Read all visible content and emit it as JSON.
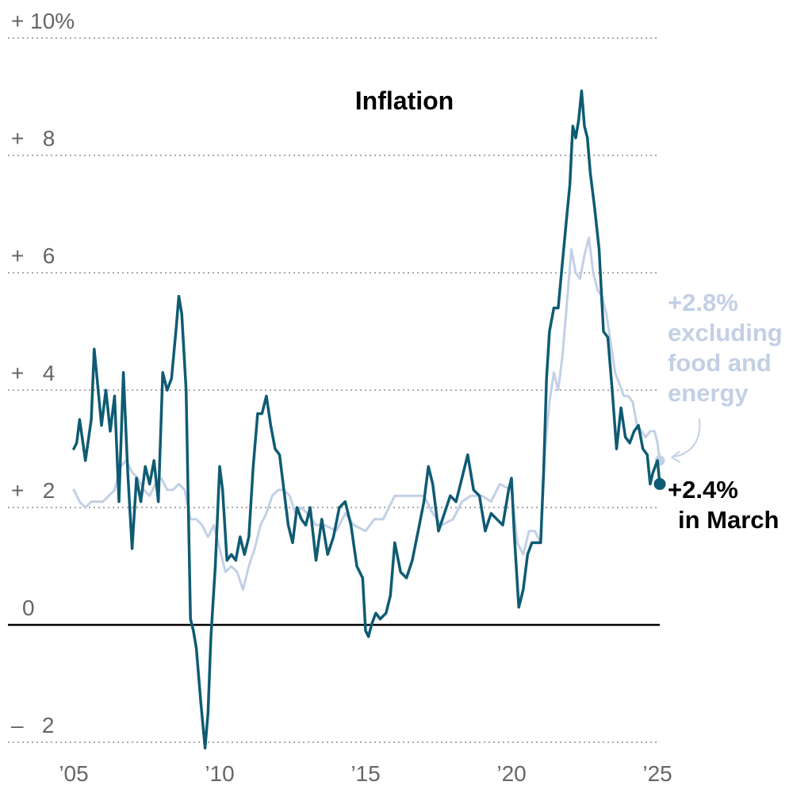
{
  "chart_data": {
    "type": "line",
    "title": "Inflation",
    "xlabel": "",
    "ylabel": "",
    "xlim": [
      2005.0,
      2025.25
    ],
    "ylim": [
      -2,
      10
    ],
    "grid": true,
    "y_ticks": [
      {
        "value": 10,
        "label": "+ 10%"
      },
      {
        "value": 8,
        "label": "+   8"
      },
      {
        "value": 6,
        "label": "+   6"
      },
      {
        "value": 4,
        "label": "+   4"
      },
      {
        "value": 2,
        "label": "+   2"
      },
      {
        "value": 0,
        "label": "0"
      },
      {
        "value": -2,
        "label": "–   2"
      }
    ],
    "x_ticks": [
      {
        "value": 2005,
        "label": "’05"
      },
      {
        "value": 2010,
        "label": "’10"
      },
      {
        "value": 2015,
        "label": "’15"
      },
      {
        "value": 2020,
        "label": "’20"
      },
      {
        "value": 2025,
        "label": "’25"
      }
    ],
    "colors": {
      "headline": "#0f5b73",
      "core": "#c2d0e5",
      "zero": "#000000",
      "grid": "#aaaaaa",
      "ticks": "#666666"
    },
    "series": [
      {
        "key": "core",
        "x": [
          2005.0,
          2005.2,
          2005.4,
          2005.6,
          2005.8,
          2006.0,
          2006.2,
          2006.4,
          2006.6,
          2006.8,
          2007.0,
          2007.2,
          2007.4,
          2007.6,
          2007.8,
          2008.0,
          2008.2,
          2008.4,
          2008.6,
          2008.8,
          2009.0,
          2009.2,
          2009.4,
          2009.6,
          2009.8,
          2010.0,
          2010.2,
          2010.4,
          2010.6,
          2010.8,
          2011.0,
          2011.2,
          2011.4,
          2011.6,
          2011.8,
          2012.0,
          2012.2,
          2012.4,
          2012.6,
          2012.8,
          2013.0,
          2013.3,
          2013.6,
          2014.0,
          2014.3,
          2014.6,
          2015.0,
          2015.3,
          2015.6,
          2016.0,
          2016.3,
          2016.6,
          2017.0,
          2017.3,
          2017.6,
          2018.0,
          2018.3,
          2018.6,
          2019.0,
          2019.3,
          2019.6,
          2020.0,
          2020.2,
          2020.4,
          2020.6,
          2020.8,
          2021.0,
          2021.15,
          2021.3,
          2021.45,
          2021.6,
          2021.75,
          2021.9,
          2022.05,
          2022.2,
          2022.35,
          2022.5,
          2022.65,
          2022.8,
          2022.95,
          2023.1,
          2023.25,
          2023.4,
          2023.55,
          2023.7,
          2023.85,
          2024.0,
          2024.15,
          2024.3,
          2024.45,
          2024.6,
          2024.75,
          2024.9,
          2025.0,
          2025.08
        ],
        "values": [
          2.3,
          2.1,
          2.0,
          2.1,
          2.1,
          2.1,
          2.2,
          2.3,
          2.7,
          2.8,
          2.6,
          2.5,
          2.3,
          2.2,
          2.4,
          2.5,
          2.3,
          2.3,
          2.4,
          2.3,
          1.8,
          1.8,
          1.7,
          1.5,
          1.7,
          1.3,
          0.9,
          1.0,
          0.9,
          0.6,
          1.0,
          1.3,
          1.7,
          1.9,
          2.2,
          2.3,
          2.3,
          2.2,
          1.9,
          2.0,
          1.9,
          1.7,
          1.7,
          1.6,
          1.9,
          1.7,
          1.6,
          1.8,
          1.8,
          2.2,
          2.2,
          2.2,
          2.2,
          1.9,
          1.7,
          1.8,
          2.1,
          2.2,
          2.2,
          2.1,
          2.4,
          2.3,
          1.4,
          1.2,
          1.6,
          1.6,
          1.4,
          3.0,
          3.8,
          4.3,
          4.0,
          4.6,
          5.5,
          6.4,
          6.0,
          5.9,
          6.3,
          6.6,
          6.0,
          5.7,
          5.6,
          5.3,
          4.8,
          4.3,
          4.1,
          3.9,
          3.9,
          3.8,
          3.4,
          3.3,
          3.2,
          3.3,
          3.3,
          3.1,
          2.8
        ]
      },
      {
        "key": "headline",
        "x": [
          2005.0,
          2005.1,
          2005.2,
          2005.4,
          2005.6,
          2005.7,
          2005.8,
          2005.95,
          2006.1,
          2006.25,
          2006.4,
          2006.55,
          2006.7,
          2006.85,
          2007.0,
          2007.15,
          2007.3,
          2007.45,
          2007.6,
          2007.75,
          2007.9,
          2008.05,
          2008.2,
          2008.35,
          2008.5,
          2008.6,
          2008.7,
          2008.85,
          2009.0,
          2009.1,
          2009.2,
          2009.35,
          2009.5,
          2009.6,
          2009.7,
          2009.85,
          2010.0,
          2010.1,
          2010.25,
          2010.4,
          2010.55,
          2010.7,
          2010.85,
          2011.0,
          2011.15,
          2011.3,
          2011.45,
          2011.6,
          2011.75,
          2011.9,
          2012.05,
          2012.2,
          2012.35,
          2012.5,
          2012.65,
          2012.8,
          2012.95,
          2013.1,
          2013.3,
          2013.5,
          2013.7,
          2013.9,
          2014.1,
          2014.3,
          2014.5,
          2014.7,
          2014.9,
          2015.0,
          2015.1,
          2015.2,
          2015.35,
          2015.5,
          2015.7,
          2015.85,
          2016.0,
          2016.2,
          2016.4,
          2016.6,
          2016.8,
          2017.0,
          2017.15,
          2017.3,
          2017.5,
          2017.7,
          2017.9,
          2018.1,
          2018.3,
          2018.5,
          2018.7,
          2018.9,
          2019.1,
          2019.3,
          2019.5,
          2019.7,
          2019.9,
          2020.0,
          2020.1,
          2020.25,
          2020.4,
          2020.55,
          2020.7,
          2020.85,
          2021.0,
          2021.1,
          2021.2,
          2021.3,
          2021.45,
          2021.6,
          2021.75,
          2021.9,
          2022.0,
          2022.1,
          2022.2,
          2022.3,
          2022.4,
          2022.5,
          2022.6,
          2022.7,
          2022.85,
          2023.0,
          2023.15,
          2023.3,
          2023.45,
          2023.6,
          2023.75,
          2023.9,
          2024.05,
          2024.2,
          2024.35,
          2024.5,
          2024.65,
          2024.75,
          2024.85,
          2025.0,
          2025.08
        ],
        "values": [
          3.0,
          3.1,
          3.5,
          2.8,
          3.5,
          4.7,
          4.2,
          3.4,
          4.0,
          3.3,
          3.9,
          2.1,
          4.3,
          2.6,
          1.3,
          2.5,
          2.1,
          2.7,
          2.4,
          2.8,
          2.1,
          4.3,
          4.0,
          4.2,
          5.0,
          5.6,
          5.3,
          4.0,
          0.1,
          -0.1,
          -0.4,
          -1.3,
          -2.1,
          -1.5,
          -0.2,
          1.0,
          2.7,
          2.3,
          1.1,
          1.2,
          1.1,
          1.5,
          1.2,
          1.5,
          2.7,
          3.6,
          3.6,
          3.9,
          3.4,
          3.0,
          2.9,
          2.3,
          1.7,
          1.4,
          2.0,
          1.8,
          1.7,
          2.0,
          1.1,
          1.8,
          1.2,
          1.5,
          2.0,
          2.1,
          1.7,
          1.0,
          0.8,
          -0.1,
          -0.2,
          0.0,
          0.2,
          0.1,
          0.2,
          0.5,
          1.4,
          0.9,
          0.8,
          1.1,
          1.6,
          2.1,
          2.7,
          2.4,
          1.6,
          1.9,
          2.2,
          2.1,
          2.5,
          2.9,
          2.3,
          2.2,
          1.6,
          1.9,
          1.8,
          1.7,
          2.3,
          2.5,
          1.5,
          0.3,
          0.6,
          1.2,
          1.4,
          1.4,
          1.4,
          2.6,
          4.2,
          5.0,
          5.4,
          5.4,
          6.2,
          7.0,
          7.5,
          8.5,
          8.3,
          8.6,
          9.1,
          8.5,
          8.3,
          7.7,
          7.1,
          6.4,
          5.0,
          4.9,
          4.0,
          3.0,
          3.7,
          3.2,
          3.1,
          3.3,
          3.4,
          3.0,
          2.9,
          2.4,
          2.6,
          2.8,
          2.4
        ]
      }
    ],
    "annotations": {
      "core": {
        "lines": [
          "+2.8%",
          "excluding",
          "food and",
          "energy"
        ],
        "value": 2.8
      },
      "headline": {
        "lines": [
          "+2.4%",
          "in March"
        ],
        "value": 2.4
      }
    }
  }
}
